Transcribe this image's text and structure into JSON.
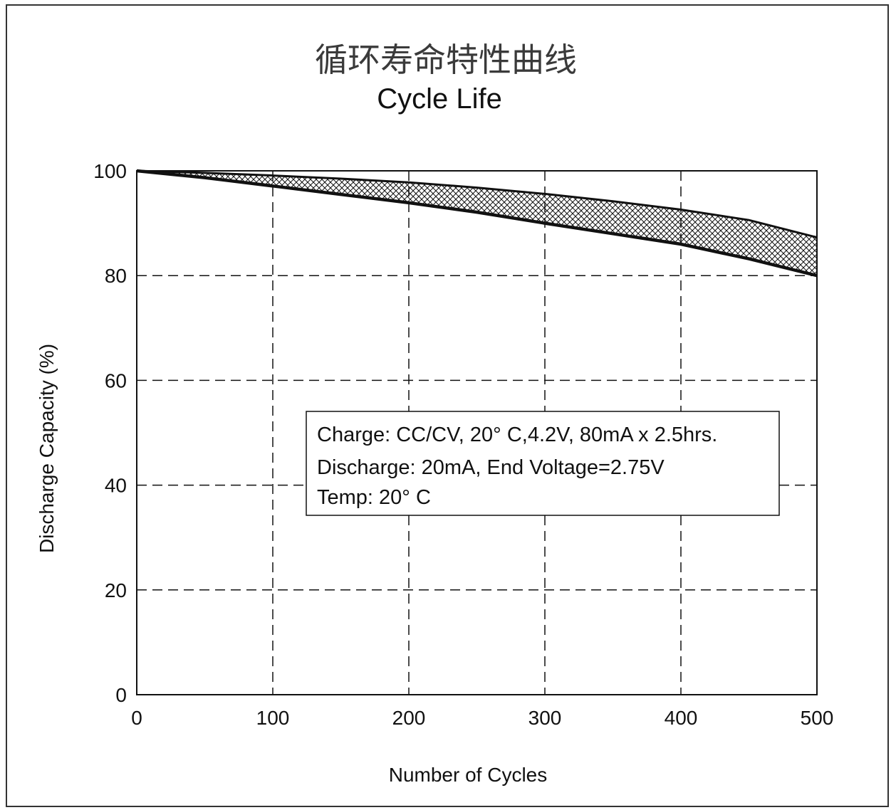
{
  "chart_data": {
    "type": "area",
    "title": "循环寿命特性曲线",
    "subtitle": "Cycle Life",
    "xlabel": "Number of Cycles",
    "ylabel": "Discharge Capacity (%)",
    "xlim": [
      0,
      500
    ],
    "ylim": [
      0,
      100
    ],
    "x_ticks": [
      "0",
      "100",
      "200",
      "300",
      "400",
      "500"
    ],
    "y_ticks": [
      "0",
      "20",
      "40",
      "60",
      "80",
      "100"
    ],
    "grid": true,
    "band_fill": "crosshatch",
    "series": [
      {
        "x": [
          0,
          50,
          100,
          150,
          200,
          250,
          300,
          350,
          400,
          450,
          500
        ],
        "y": [
          100,
          99.6,
          99.1,
          98.5,
          97.8,
          96.8,
          95.6,
          94.2,
          92.6,
          90.6,
          87.3
        ]
      },
      {
        "x": [
          0,
          50,
          100,
          150,
          200,
          250,
          300,
          350,
          400,
          450,
          500
        ],
        "y": [
          100,
          98.7,
          97.1,
          95.5,
          93.9,
          92.1,
          90.0,
          88.0,
          86.0,
          83.2,
          80.0
        ]
      }
    ],
    "annotation": {
      "lines": [
        "Charge: CC/CV,  20°   C,4.2V,  80mA x 2.5hrs.",
        "Discharge: 20mA,  End Voltage=2.75V",
        "Temp: 20°   C"
      ]
    }
  }
}
